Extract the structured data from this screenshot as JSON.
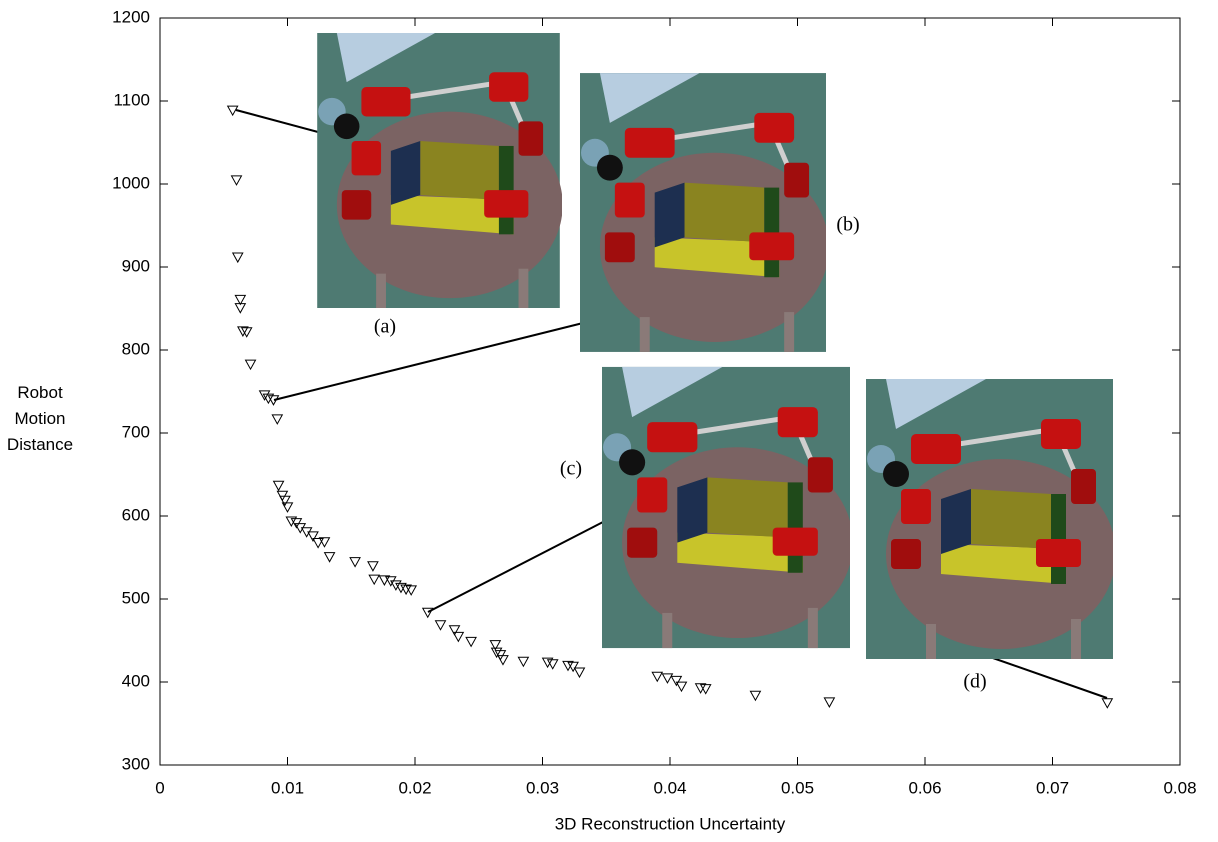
{
  "chart_data": {
    "type": "scatter",
    "x_label": "3D Reconstruction Uncertainty",
    "y_label": "Robot Motion Distance",
    "annotations": [
      "(a)",
      "(b)",
      "(c)",
      "(d)"
    ],
    "xlim": [
      0,
      0.08
    ],
    "xticks": [
      0,
      0.01,
      0.02,
      0.03,
      0.04,
      0.05,
      0.06,
      0.07,
      0.08
    ],
    "ylim": [
      300,
      1200
    ],
    "yticks": [
      300,
      400,
      500,
      600,
      700,
      800,
      900,
      1000,
      1100,
      1200
    ],
    "color": "#000000",
    "x": [
      0.0057,
      0.006,
      0.0061,
      0.0063,
      0.0063,
      0.0065,
      0.0068,
      0.0071,
      0.0082,
      0.0085,
      0.0089,
      0.0092,
      0.0093,
      0.0096,
      0.0098,
      0.01,
      0.0103,
      0.0107,
      0.011,
      0.0115,
      0.012,
      0.0124,
      0.0129,
      0.0133,
      0.0153,
      0.0167,
      0.0168,
      0.0176,
      0.0181,
      0.0185,
      0.0189,
      0.0193,
      0.0197,
      0.021,
      0.022,
      0.0231,
      0.0234,
      0.0244,
      0.0263,
      0.0264,
      0.0267,
      0.0269,
      0.0285,
      0.0304,
      0.0308,
      0.032,
      0.0324,
      0.0329,
      0.039,
      0.0398,
      0.0405,
      0.0409,
      0.0424,
      0.0428,
      0.0467,
      0.0525,
      0.0743
    ],
    "values": [
      1089,
      1005,
      912,
      861,
      851,
      823,
      822,
      783,
      746,
      742,
      740,
      717,
      637,
      625,
      619,
      611,
      594,
      592,
      586,
      581,
      576,
      568,
      569,
      551,
      545,
      540,
      524,
      523,
      522,
      517,
      514,
      512,
      511,
      484,
      469,
      463,
      455,
      449,
      445,
      436,
      433,
      427,
      425,
      424,
      422,
      420,
      419,
      412,
      407,
      405,
      402,
      395,
      393,
      392,
      384,
      376,
      375
    ]
  }
}
